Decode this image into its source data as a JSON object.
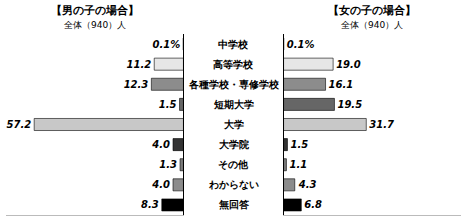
{
  "chart_data": [
    {
      "type": "bar",
      "orientation": "horizontal",
      "title": "【男の子の場合】",
      "subtitle": "全体（940）人",
      "categories": [
        "中学校",
        "高等学校",
        "各種学校・専修学校",
        "短期大学",
        "大学",
        "大学院",
        "その他",
        "わからない",
        "無回答"
      ],
      "values": [
        0.1,
        11.2,
        12.3,
        1.5,
        57.2,
        4.0,
        1.3,
        4.0,
        8.3
      ],
      "value_labels": [
        "0.1%",
        "11.2",
        "12.3",
        "1.5",
        "57.2",
        "4.0",
        "1.3",
        "4.0",
        "8.3"
      ],
      "colors": [
        "#f2f2f2",
        "#e6e6e6",
        "#8c8c8c",
        "#666666",
        "#c8c8c8",
        "#333333",
        "#7a7a7a",
        "#8c8c8c",
        "#000000"
      ],
      "xlim": [
        0,
        68
      ],
      "data_labels": true,
      "tick_labels": false,
      "grid": false
    },
    {
      "type": "bar",
      "orientation": "horizontal",
      "title": "【女の子の場合】",
      "subtitle": "全体（940）人",
      "categories": [
        "中学校",
        "高等学校",
        "各種学校・専修学校",
        "短期大学",
        "大学",
        "大学院",
        "その他",
        "わからない",
        "無回答"
      ],
      "values": [
        0.1,
        19.0,
        16.1,
        19.5,
        31.7,
        1.5,
        1.1,
        4.3,
        6.8
      ],
      "value_labels": [
        "0.1%",
        "19.0",
        "16.1",
        "19.5",
        "31.7",
        "1.5",
        "1.1",
        "4.3",
        "6.8"
      ],
      "colors": [
        "#f2f2f2",
        "#e6e6e6",
        "#8c8c8c",
        "#666666",
        "#c8c8c8",
        "#333333",
        "#7a7a7a",
        "#8c8c8c",
        "#000000"
      ],
      "xlim": [
        0,
        68
      ],
      "data_labels": true,
      "tick_labels": false,
      "grid": false
    }
  ]
}
